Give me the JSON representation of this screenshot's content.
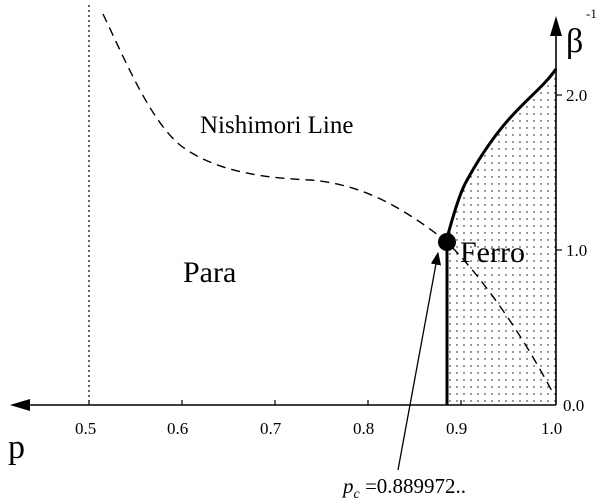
{
  "axes": {
    "x_label": "p",
    "y_label": "β",
    "y_label_sup": "-1",
    "x_ticks": [
      "0.5",
      "0.6",
      "0.7",
      "0.8",
      "0.9",
      "1.0"
    ],
    "y_ticks": [
      "0.0",
      "1.0",
      "2.0"
    ]
  },
  "regions": {
    "para": "Para",
    "ferro": "Ferro"
  },
  "nishimori_label": "Nishimori Line",
  "critical_point": {
    "symbol": "p",
    "subscript": "c",
    "value_text": " =0.889972.."
  }
}
